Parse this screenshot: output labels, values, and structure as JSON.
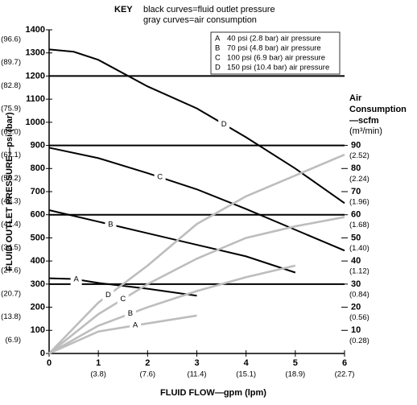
{
  "chart_data": {
    "type": "line",
    "key_title": "KEY",
    "key_lines": [
      "black curves=fluid outlet pressure",
      "gray curves=air consumption"
    ],
    "x_label": "FLUID FLOW—gpm (lpm)",
    "y_label": "FLUID OUTLET PRESSURE—psi (bar)",
    "y2_label": [
      "Air",
      "Consumption",
      "—scfm",
      "(m³/min)"
    ],
    "xlim": [
      0,
      6
    ],
    "xticks": [
      0,
      1,
      2,
      3,
      4,
      5,
      6
    ],
    "xtick_sublabels": [
      null,
      "(3.8)",
      "(7.6)",
      "(11.4)",
      "(15.1)",
      "(18.9)",
      "(22.7)"
    ],
    "ylim": [
      0,
      1400
    ],
    "yticks": [
      0,
      100,
      200,
      300,
      400,
      500,
      600,
      700,
      800,
      900,
      1000,
      1100,
      1200,
      1300,
      1400
    ],
    "ytick_sublabels": [
      null,
      "(6.9)",
      "(13.8)",
      "(20.7)",
      "(27.6)",
      "(34.5)",
      "(41.4)",
      "(48.3)",
      "(55.2)",
      "(62.1)",
      "(69.0)",
      "(75.9)",
      "(82.8)",
      "(89.7)",
      "(96.6)"
    ],
    "y2lim": [
      0,
      140
    ],
    "y2ticks": [
      10,
      20,
      30,
      40,
      50,
      60,
      70,
      80,
      90
    ],
    "y2tick_sublabels": [
      "(0.28)",
      "(0.56)",
      "(0.84)",
      "(1.12)",
      "(1.40)",
      "(1.68)",
      "(1.96)",
      "(2.24)",
      "(2.52)"
    ],
    "thick_gridlines": [
      300,
      600,
      900,
      1200
    ],
    "series": [
      {
        "name": "A",
        "description": "40 psi (2.8 bar) air pressure",
        "color": "#000000",
        "x": [
          0,
          0.5,
          1,
          2,
          3
        ],
        "values": [
          325,
          322,
          305,
          280,
          250
        ]
      },
      {
        "name": "B",
        "description": "70 psi (4.8 bar) air pressure",
        "color": "#000000",
        "x": [
          0,
          1,
          2,
          3,
          4,
          5
        ],
        "values": [
          620,
          570,
          520,
          470,
          420,
          350
        ]
      },
      {
        "name": "C",
        "description": "100 psi (6.9 bar) air pressure",
        "color": "#000000",
        "x": [
          0,
          1,
          2,
          3,
          4,
          5,
          6
        ],
        "values": [
          890,
          845,
          780,
          710,
          625,
          535,
          445
        ]
      },
      {
        "name": "D",
        "description": "150 psi (10.4 bar) air pressure",
        "color": "#000000",
        "x": [
          0,
          0.5,
          1,
          2,
          3,
          4,
          5,
          6
        ],
        "values": [
          1315,
          1305,
          1270,
          1155,
          1060,
          935,
          800,
          650
        ]
      },
      {
        "name": "A",
        "color": "#bdbdbd",
        "axis": "y2",
        "x": [
          0,
          1,
          2,
          3
        ],
        "values": [
          0,
          9.5,
          13,
          16.4
        ]
      },
      {
        "name": "B",
        "color": "#bdbdbd",
        "axis": "y2",
        "x": [
          0,
          1,
          2,
          3,
          4,
          5
        ],
        "values": [
          0,
          12,
          20,
          27,
          33,
          38
        ]
      },
      {
        "name": "C",
        "color": "#bdbdbd",
        "axis": "y2",
        "x": [
          0,
          1,
          2,
          3,
          4,
          5,
          6
        ],
        "values": [
          0,
          17,
          30,
          41,
          50,
          55,
          59
        ]
      },
      {
        "name": "D",
        "color": "#bdbdbd",
        "axis": "y2",
        "x": [
          0,
          1,
          2,
          3,
          4,
          5,
          6
        ],
        "values": [
          0,
          22,
          38,
          56,
          68,
          77,
          86
        ]
      }
    ]
  }
}
